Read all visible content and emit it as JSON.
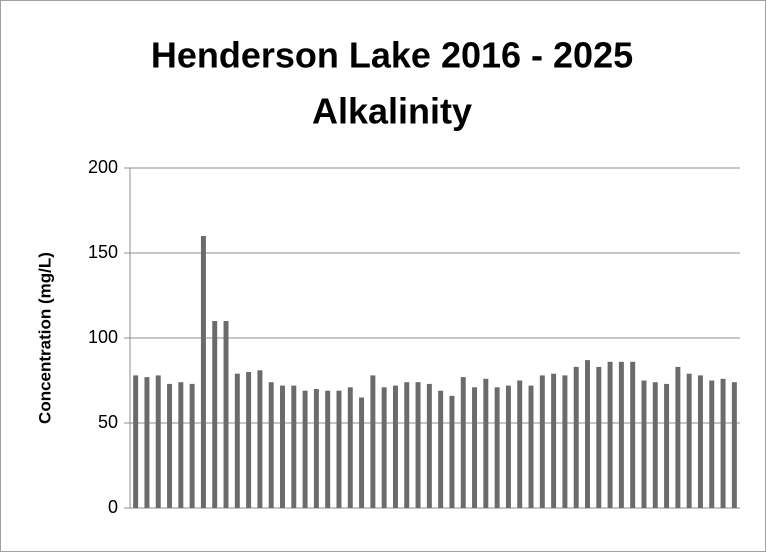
{
  "chart_data": {
    "type": "bar",
    "title": [
      "Henderson Lake 2016 - 2025",
      "Alkalinity"
    ],
    "y_label": "Concentration (mg/L)",
    "categories": [
      null,
      null,
      null,
      null,
      null,
      null,
      null,
      null,
      null,
      null,
      null,
      null,
      null,
      null,
      null,
      null,
      null,
      null,
      null,
      null,
      null,
      null,
      null,
      null,
      null,
      null,
      null,
      null,
      null,
      null,
      null,
      null,
      null,
      null,
      null,
      null,
      null,
      null,
      null,
      null,
      null,
      null,
      null,
      null,
      null,
      null,
      null,
      null,
      null,
      null,
      null,
      null,
      null,
      null
    ],
    "values": [
      78,
      77,
      78,
      73,
      74,
      73,
      160,
      110,
      110,
      79,
      80,
      81,
      74,
      72,
      72,
      69,
      70,
      69,
      69,
      71,
      65,
      78,
      71,
      72,
      74,
      74,
      73,
      69,
      66,
      77,
      71,
      76,
      71,
      72,
      75,
      72,
      78,
      79,
      78,
      83,
      87,
      83,
      86,
      86,
      86,
      75,
      74,
      73,
      83,
      79,
      78,
      75,
      76,
      74
    ],
    "color": "#6b6b6b",
    "ylim": [
      0,
      200
    ],
    "yticks": [
      0,
      50,
      100,
      150,
      200
    ],
    "grid": true
  }
}
